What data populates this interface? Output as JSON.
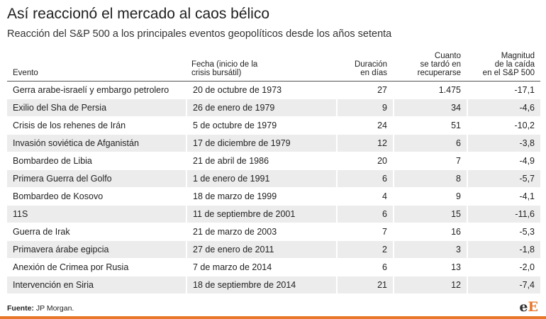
{
  "title": "Así reaccionó el mercado al caos bélico",
  "subtitle": "Reacción del S&P 500 a los principales eventos geopolíticos desde los años setenta",
  "source_label": "Fuente:",
  "source_value": "JP Morgan.",
  "logo": {
    "small": "e",
    "large": "E"
  },
  "colors": {
    "accent": "#e8782a",
    "stripe": "#ececec"
  },
  "chart_data": {
    "type": "table",
    "columns": [
      "Evento",
      "Fecha (inicio de la crisis bursátil)",
      "Duración en días",
      "Cuanto se tardó en recuperarse",
      "Magnitud de la caída en el S&P 500"
    ],
    "header_lines": [
      [
        "Evento"
      ],
      [
        "Fecha (inicio de la",
        "crisis bursátil)"
      ],
      [
        "Duración",
        "en días"
      ],
      [
        "Cuanto",
        "se tardó en",
        "recuperarse"
      ],
      [
        "Magnitud",
        "de la caída",
        "en el S&P 500"
      ]
    ],
    "rows": [
      [
        "Gerra arabe-israelí y embargo petrolero",
        "20 de octubre de 1973",
        "27",
        "1.475",
        "-17,1"
      ],
      [
        "Exilio del Sha de Persia",
        "26 de enero de 1979",
        "9",
        "34",
        "-4,6"
      ],
      [
        "Crisis de los rehenes de Irán",
        "5 de octubre de 1979",
        "24",
        "51",
        "-10,2"
      ],
      [
        "Invasión soviética de Afganistán",
        "17 de diciembre de 1979",
        "12",
        "6",
        "-3,8"
      ],
      [
        "Bombardeo de Libia",
        "21 de abril de 1986",
        "20",
        "7",
        "-4,9"
      ],
      [
        "Primera Guerra del Golfo",
        "1 de enero de 1991",
        "6",
        "8",
        "-5,7"
      ],
      [
        "Bombardeo de Kosovo",
        "18 de marzo de 1999",
        "4",
        "9",
        "-4,1"
      ],
      [
        "11S",
        "11 de septiembre de 2001",
        "6",
        "15",
        "-11,6"
      ],
      [
        "Guerra de Irak",
        "21 de marzo de 2003",
        "7",
        "16",
        "-5,3"
      ],
      [
        "Primavera árabe egipcia",
        "27 de enero de 2011",
        "2",
        "3",
        "-1,8"
      ],
      [
        "Anexión de Crimea por Rusia",
        "7 de marzo de 2014",
        "6",
        "13",
        "-2,0"
      ],
      [
        "Intervención en Siria",
        "18 de septiembre de 2014",
        "21",
        "12",
        "-7,4"
      ]
    ]
  }
}
